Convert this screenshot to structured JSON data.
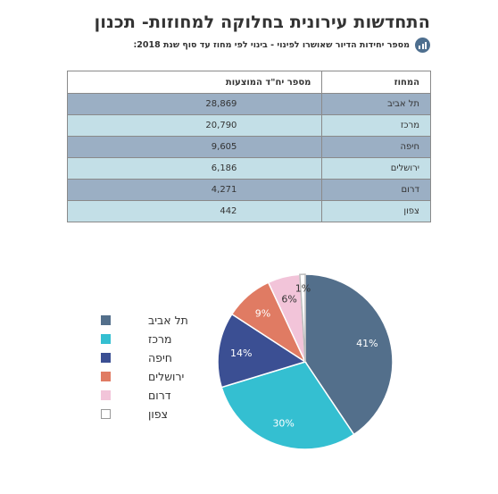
{
  "header": {
    "title": "התחדשות עירונית בחלוקה למחוזות- תכנון",
    "subtitle": "מספר יחידות הדיור שאושרו לפינוי - בינוי לפי מחוז עד סוף שנת 2018:",
    "icon": "bar-chart-icon"
  },
  "table": {
    "columns": [
      "המחוז",
      "מספר יח\"ד המוצעות"
    ],
    "rows": [
      {
        "district": "תל אביב",
        "units": "28,869"
      },
      {
        "district": "מרכז",
        "units": "20,790"
      },
      {
        "district": "חיפה",
        "units": "9,605"
      },
      {
        "district": "ירושלים",
        "units": "6,186"
      },
      {
        "district": "דרום",
        "units": "4,271"
      },
      {
        "district": "צפון",
        "units": "442"
      }
    ]
  },
  "chart_data": {
    "type": "pie",
    "categories": [
      "תל אביב",
      "מרכז",
      "חיפה",
      "ירושלים",
      "דרום",
      "צפון"
    ],
    "values": [
      41,
      30,
      14,
      9,
      6,
      1
    ],
    "labels": [
      "41%",
      "30%",
      "14%",
      "9%",
      "6%",
      "1%"
    ],
    "colors": [
      "#536f8b",
      "#34bfd1",
      "#3b4f93",
      "#e07b63",
      "#f2c4d9",
      "#ffffff"
    ],
    "label_colors": [
      "#ffffff",
      "#ffffff",
      "#ffffff",
      "#ffffff",
      "#333333",
      "#333333"
    ],
    "legend_position": "left"
  }
}
